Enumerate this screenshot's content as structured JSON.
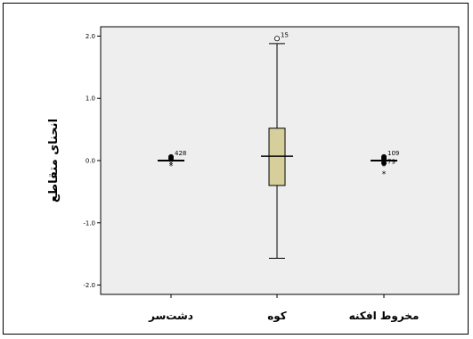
{
  "chart_data": {
    "type": "boxplot",
    "title": "",
    "xlabel": "",
    "ylabel": "انحنای متقاطع",
    "ylim": [
      -2.15,
      2.15
    ],
    "yticks": [
      2.0,
      1.0,
      0.0,
      -1.0,
      -2.0
    ],
    "ytick_labels": [
      "2.0",
      "1.0",
      "0.0",
      "-1.0",
      "-2.0"
    ],
    "categories": [
      "دشت‌سر",
      "کوه",
      "مخروط افکنه"
    ],
    "boxes": [
      {
        "category": "دشت‌سر",
        "whisker_low": 0.0,
        "q1": 0.0,
        "median": 0.0,
        "q3": 0.0,
        "whisker_high": 0.0,
        "outliers": [
          {
            "value": 0.06,
            "marker": "o",
            "label": "428"
          },
          {
            "value": 0.03,
            "marker": "o",
            "label": ""
          },
          {
            "value": -0.04,
            "marker": "*",
            "label": ""
          },
          {
            "value": -0.07,
            "marker": "*",
            "label": ""
          }
        ]
      },
      {
        "category": "کوه",
        "whisker_low": -1.57,
        "q1": -0.4,
        "median": 0.07,
        "q3": 0.52,
        "whisker_high": 1.88,
        "outliers": [
          {
            "value": 1.96,
            "marker": "o",
            "label": "15"
          }
        ]
      },
      {
        "category": "مخروط افکنه",
        "whisker_low": 0.0,
        "q1": 0.0,
        "median": 0.0,
        "q3": 0.0,
        "whisker_high": 0.0,
        "outliers": [
          {
            "value": 0.06,
            "marker": "o",
            "label": "109"
          },
          {
            "value": 0.03,
            "marker": "o",
            "label": ""
          },
          {
            "value": -0.04,
            "marker": "o",
            "label": ""
          },
          {
            "value": -0.08,
            "marker": "*",
            "label": "79"
          },
          {
            "value": -0.2,
            "marker": "*",
            "label": ""
          }
        ]
      }
    ],
    "colors": {
      "plot_background": "#eeeeee",
      "box_fill": "#d6cf9c",
      "line": "#000000"
    },
    "grid": false,
    "legend": "none"
  }
}
